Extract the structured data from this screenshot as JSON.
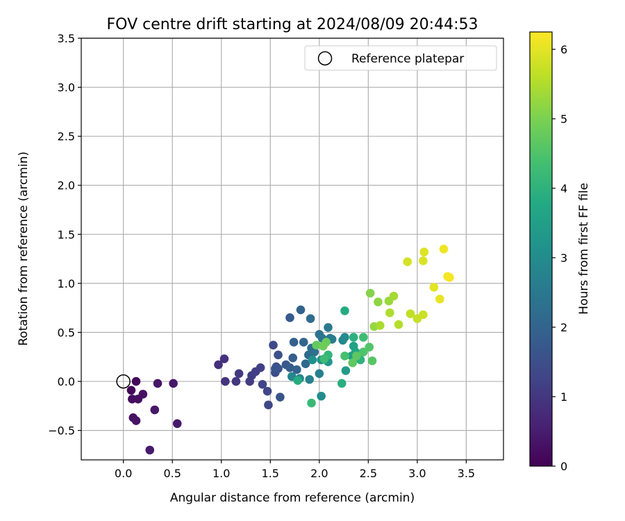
{
  "chart_data": {
    "type": "scatter",
    "title": "FOV centre drift starting at 2024/08/09 20:44:53",
    "xlabel": "Angular distance from reference (arcmin)",
    "ylabel": "Rotation from reference (arcmin)",
    "xlim": [
      -0.43,
      3.88
    ],
    "ylim": [
      -0.8,
      3.5
    ],
    "xticks": [
      "0.0",
      "0.5",
      "1.0",
      "1.5",
      "2.0",
      "2.5",
      "3.0",
      "3.5"
    ],
    "yticks": [
      "−0.5",
      "0.0",
      "0.5",
      "1.0",
      "1.5",
      "2.0",
      "2.5",
      "3.0",
      "3.5"
    ],
    "grid": true,
    "legend": {
      "position": "top-right",
      "entries": [
        "Reference platepar"
      ]
    },
    "reference_point": {
      "x": 0.0,
      "y": 0.0
    },
    "colorbar": {
      "label": "Hours from first FF file",
      "range": [
        0,
        6.25
      ],
      "ticks": [
        "0",
        "1",
        "2",
        "3",
        "4",
        "5",
        "6"
      ],
      "colormap": "viridis"
    },
    "points": [
      {
        "x": 0.08,
        "y": -0.09,
        "c": 0.1
      },
      {
        "x": 0.13,
        "y": 0.0,
        "c": 0.15
      },
      {
        "x": 0.09,
        "y": -0.18,
        "c": 0.2
      },
      {
        "x": 0.15,
        "y": -0.18,
        "c": 0.25
      },
      {
        "x": 0.2,
        "y": -0.13,
        "c": 0.28
      },
      {
        "x": 0.1,
        "y": -0.37,
        "c": 0.3
      },
      {
        "x": 0.13,
        "y": -0.4,
        "c": 0.32
      },
      {
        "x": 0.35,
        "y": -0.02,
        "c": 0.35
      },
      {
        "x": 0.51,
        "y": -0.02,
        "c": 0.38
      },
      {
        "x": 0.32,
        "y": -0.29,
        "c": 0.4
      },
      {
        "x": 0.55,
        "y": -0.43,
        "c": 0.42
      },
      {
        "x": 0.27,
        "y": -0.7,
        "c": 0.45
      },
      {
        "x": 0.97,
        "y": 0.17,
        "c": 0.85
      },
      {
        "x": 1.03,
        "y": 0.23,
        "c": 0.9
      },
      {
        "x": 1.04,
        "y": 0.0,
        "c": 0.95
      },
      {
        "x": 1.15,
        "y": 0.0,
        "c": 1.0
      },
      {
        "x": 1.18,
        "y": 0.08,
        "c": 1.05
      },
      {
        "x": 1.29,
        "y": 0.0,
        "c": 1.1
      },
      {
        "x": 1.31,
        "y": 0.06,
        "c": 1.12
      },
      {
        "x": 1.35,
        "y": 0.1,
        "c": 1.15
      },
      {
        "x": 1.4,
        "y": 0.14,
        "c": 1.2
      },
      {
        "x": 1.42,
        "y": -0.03,
        "c": 1.25
      },
      {
        "x": 1.47,
        "y": -0.1,
        "c": 1.3
      },
      {
        "x": 1.48,
        "y": -0.24,
        "c": 1.35
      },
      {
        "x": 1.53,
        "y": 0.37,
        "c": 1.4
      },
      {
        "x": 1.55,
        "y": 0.09,
        "c": 1.45
      },
      {
        "x": 1.56,
        "y": 0.15,
        "c": 1.5
      },
      {
        "x": 1.58,
        "y": 0.27,
        "c": 1.55
      },
      {
        "x": 1.6,
        "y": -0.16,
        "c": 1.6
      },
      {
        "x": 1.58,
        "y": 0.13,
        "c": 1.62
      },
      {
        "x": 1.55,
        "y": 0.13,
        "c": 1.65
      },
      {
        "x": 1.66,
        "y": 0.17,
        "c": 1.7
      },
      {
        "x": 1.7,
        "y": 0.65,
        "c": 1.75
      },
      {
        "x": 1.7,
        "y": 0.14,
        "c": 1.8
      },
      {
        "x": 1.73,
        "y": 0.24,
        "c": 1.85
      },
      {
        "x": 1.74,
        "y": 0.4,
        "c": 1.9
      },
      {
        "x": 1.77,
        "y": 0.12,
        "c": 1.95
      },
      {
        "x": 1.81,
        "y": 0.73,
        "c": 2.0
      },
      {
        "x": 1.84,
        "y": 0.4,
        "c": 2.05
      },
      {
        "x": 1.86,
        "y": 0.18,
        "c": 2.1
      },
      {
        "x": 1.89,
        "y": 0.27,
        "c": 2.15
      },
      {
        "x": 1.91,
        "y": 0.64,
        "c": 2.2
      },
      {
        "x": 1.92,
        "y": 0.34,
        "c": 2.25
      },
      {
        "x": 1.95,
        "y": 0.3,
        "c": 2.3
      },
      {
        "x": 2.0,
        "y": 0.48,
        "c": 2.35
      },
      {
        "x": 2.03,
        "y": 0.44,
        "c": 2.4
      },
      {
        "x": 2.11,
        "y": 0.44,
        "c": 2.45
      },
      {
        "x": 2.09,
        "y": 0.55,
        "c": 2.55
      },
      {
        "x": 2.13,
        "y": 0.43,
        "c": 2.6
      },
      {
        "x": 2.0,
        "y": 0.08,
        "c": 2.7
      },
      {
        "x": 1.9,
        "y": 0.02,
        "c": 2.75
      },
      {
        "x": 1.8,
        "y": 0.03,
        "c": 2.8
      },
      {
        "x": 1.72,
        "y": 0.05,
        "c": 2.85
      },
      {
        "x": 2.24,
        "y": 0.42,
        "c": 2.9
      },
      {
        "x": 2.26,
        "y": 0.45,
        "c": 2.95
      },
      {
        "x": 2.02,
        "y": -0.15,
        "c": 3.0
      },
      {
        "x": 1.93,
        "y": 0.22,
        "c": 3.1
      },
      {
        "x": 2.02,
        "y": 0.22,
        "c": 3.2
      },
      {
        "x": 2.09,
        "y": 0.2,
        "c": 3.3
      },
      {
        "x": 2.27,
        "y": 0.11,
        "c": 3.4
      },
      {
        "x": 2.33,
        "y": 0.26,
        "c": 3.5
      },
      {
        "x": 2.35,
        "y": 0.36,
        "c": 3.6
      },
      {
        "x": 2.37,
        "y": 0.3,
        "c": 3.7
      },
      {
        "x": 2.26,
        "y": 0.72,
        "c": 3.8
      },
      {
        "x": 1.78,
        "y": 0.01,
        "c": 3.85
      },
      {
        "x": 2.23,
        "y": -0.02,
        "c": 3.9
      },
      {
        "x": 2.35,
        "y": 0.45,
        "c": 3.95
      },
      {
        "x": 2.42,
        "y": 0.22,
        "c": 4.0
      },
      {
        "x": 2.09,
        "y": 0.27,
        "c": 4.1
      },
      {
        "x": 1.92,
        "y": -0.22,
        "c": 4.2
      },
      {
        "x": 2.05,
        "y": 0.23,
        "c": 4.25
      },
      {
        "x": 2.45,
        "y": 0.45,
        "c": 4.3
      },
      {
        "x": 2.26,
        "y": 0.26,
        "c": 4.4
      },
      {
        "x": 2.45,
        "y": 0.3,
        "c": 4.5
      },
      {
        "x": 2.51,
        "y": 0.35,
        "c": 4.55
      },
      {
        "x": 2.54,
        "y": 0.21,
        "c": 4.6
      },
      {
        "x": 2.38,
        "y": 0.26,
        "c": 4.65
      },
      {
        "x": 2.34,
        "y": 0.19,
        "c": 4.7
      },
      {
        "x": 1.97,
        "y": 0.37,
        "c": 4.75
      },
      {
        "x": 2.07,
        "y": 0.4,
        "c": 4.8
      },
      {
        "x": 2.04,
        "y": 0.36,
        "c": 4.85
      },
      {
        "x": 2.52,
        "y": 0.9,
        "c": 5.1
      },
      {
        "x": 2.6,
        "y": 0.81,
        "c": 5.2
      },
      {
        "x": 2.56,
        "y": 0.56,
        "c": 5.25
      },
      {
        "x": 2.71,
        "y": 0.82,
        "c": 5.3
      },
      {
        "x": 2.76,
        "y": 0.87,
        "c": 5.4
      },
      {
        "x": 2.62,
        "y": 0.57,
        "c": 5.45
      },
      {
        "x": 2.72,
        "y": 0.7,
        "c": 5.5
      },
      {
        "x": 2.81,
        "y": 0.58,
        "c": 5.55
      },
      {
        "x": 2.93,
        "y": 0.69,
        "c": 5.65
      },
      {
        "x": 3.0,
        "y": 0.64,
        "c": 5.7
      },
      {
        "x": 3.06,
        "y": 0.68,
        "c": 5.75
      },
      {
        "x": 2.9,
        "y": 1.22,
        "c": 5.85
      },
      {
        "x": 3.06,
        "y": 1.23,
        "c": 5.9
      },
      {
        "x": 3.07,
        "y": 1.32,
        "c": 5.95
      },
      {
        "x": 3.17,
        "y": 0.96,
        "c": 6.0
      },
      {
        "x": 3.23,
        "y": 0.84,
        "c": 6.05
      },
      {
        "x": 3.27,
        "y": 1.35,
        "c": 6.1
      },
      {
        "x": 3.31,
        "y": 1.07,
        "c": 6.15
      },
      {
        "x": 3.33,
        "y": 1.06,
        "c": 6.2
      }
    ]
  }
}
